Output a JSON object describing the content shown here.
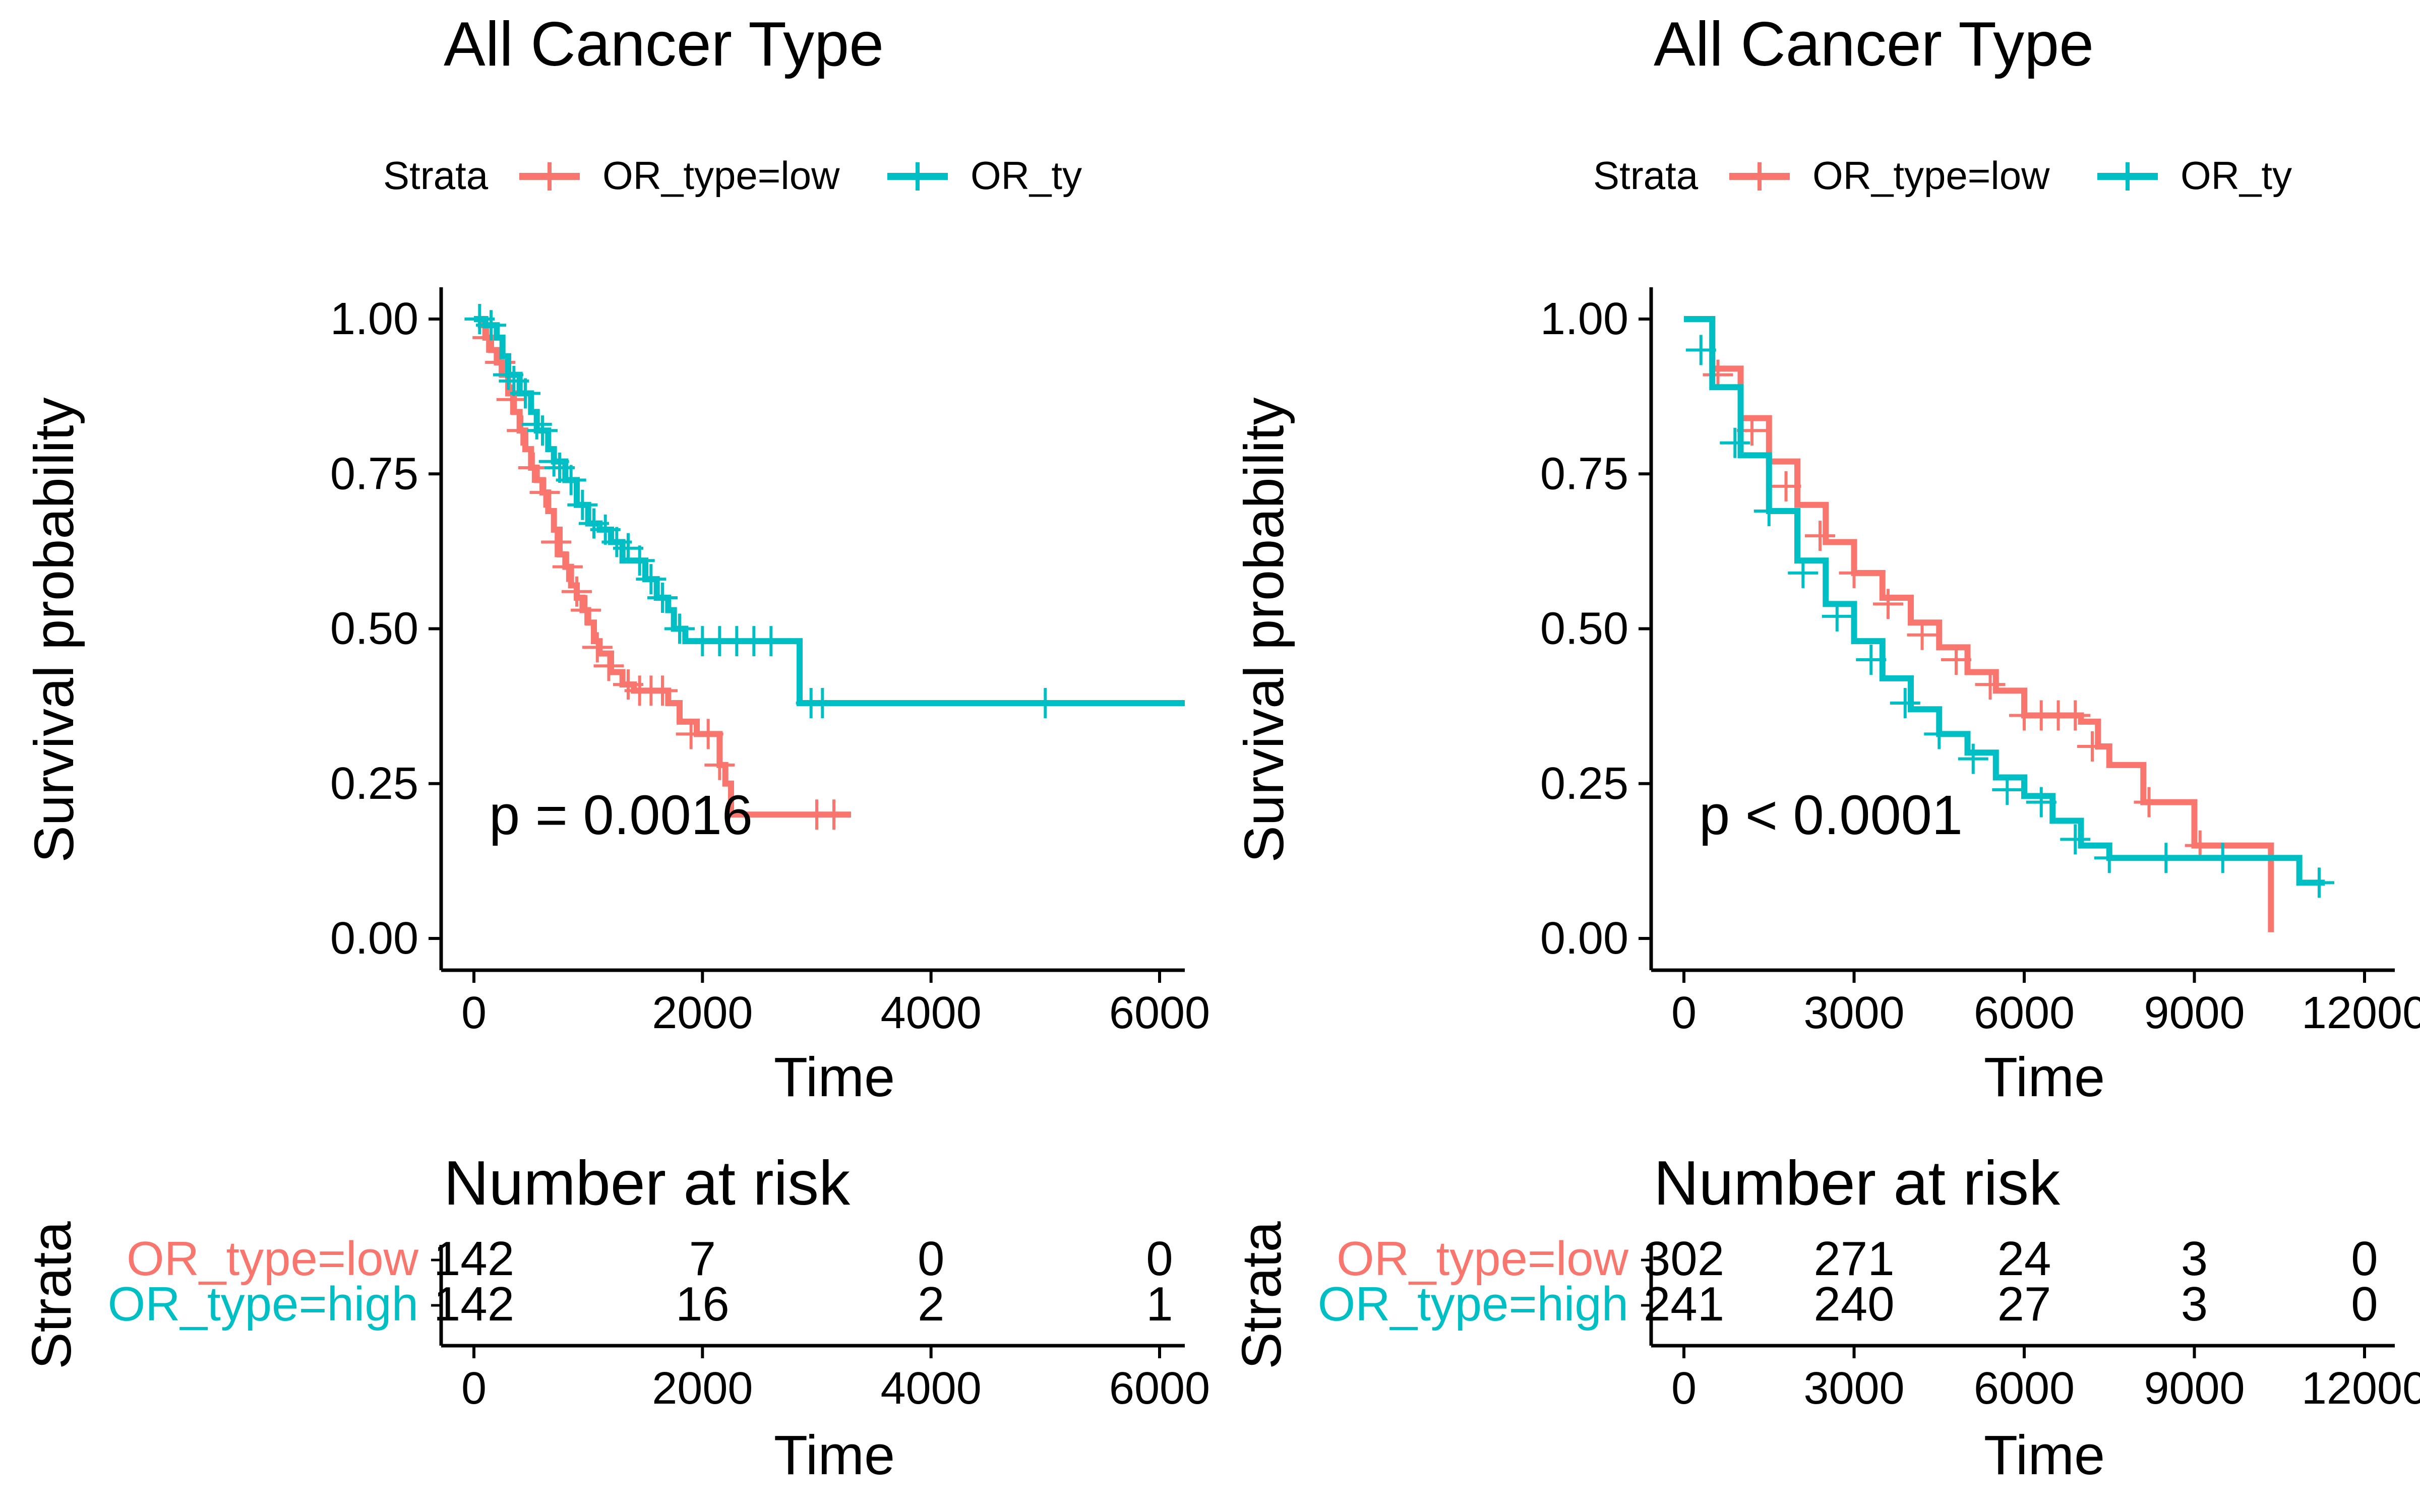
{
  "colors": {
    "low": "#F8766D",
    "high": "#00BFC4",
    "axis": "#000000"
  },
  "chart_data": [
    {
      "type": "line",
      "subtype": "kaplan-meier",
      "title": "All Cancer Type",
      "legend": {
        "title": "Strata",
        "placement": "top",
        "labels": [
          "OR_type=low",
          "OR_type=hig"
        ]
      },
      "xlabel": "Time",
      "ylabel": "Survival probability",
      "xlim": [
        0,
        6300
      ],
      "ylim": [
        0,
        1
      ],
      "xticks": [
        "0",
        "2000",
        "4000",
        "6000"
      ],
      "yticks": [
        "0.00",
        "0.25",
        "0.50",
        "0.75",
        "1.00"
      ],
      "pvalue": "p = 0.0016",
      "series": [
        {
          "name": "OR_type=low",
          "color": "#F8766D",
          "steps": [
            [
              0,
              1
            ],
            [
              60,
              0.99
            ],
            [
              100,
              0.97
            ],
            [
              150,
              0.95
            ],
            [
              200,
              0.93
            ],
            [
              250,
              0.91
            ],
            [
              300,
              0.88
            ],
            [
              350,
              0.85
            ],
            [
              400,
              0.82
            ],
            [
              450,
              0.79
            ],
            [
              500,
              0.76
            ],
            [
              550,
              0.74
            ],
            [
              600,
              0.72
            ],
            [
              650,
              0.69
            ],
            [
              700,
              0.66
            ],
            [
              750,
              0.62
            ],
            [
              800,
              0.6
            ],
            [
              850,
              0.57
            ],
            [
              900,
              0.55
            ],
            [
              950,
              0.53
            ],
            [
              1000,
              0.51
            ],
            [
              1050,
              0.48
            ],
            [
              1100,
              0.46
            ],
            [
              1200,
              0.43
            ],
            [
              1300,
              0.41
            ],
            [
              1400,
              0.4
            ],
            [
              1700,
              0.38
            ],
            [
              1800,
              0.35
            ],
            [
              1950,
              0.33
            ],
            [
              2150,
              0.28
            ],
            [
              2200,
              0.25
            ],
            [
              2250,
              0.2
            ],
            [
              3300,
              0.2
            ]
          ],
          "censor": [
            [
              120,
              0.97
            ],
            [
              230,
              0.93
            ],
            [
              330,
              0.87
            ],
            [
              420,
              0.82
            ],
            [
              520,
              0.76
            ],
            [
              620,
              0.72
            ],
            [
              720,
              0.64
            ],
            [
              820,
              0.6
            ],
            [
              900,
              0.56
            ],
            [
              980,
              0.53
            ],
            [
              1080,
              0.47
            ],
            [
              1180,
              0.44
            ],
            [
              1350,
              0.41
            ],
            [
              1450,
              0.4
            ],
            [
              1550,
              0.4
            ],
            [
              1650,
              0.4
            ],
            [
              1900,
              0.33
            ],
            [
              2050,
              0.33
            ],
            [
              2150,
              0.28
            ],
            [
              3000,
              0.2
            ],
            [
              3150,
              0.2
            ]
          ]
        },
        {
          "name": "OR_type=high",
          "color": "#00BFC4",
          "steps": [
            [
              0,
              1
            ],
            [
              100,
              0.99
            ],
            [
              200,
              0.97
            ],
            [
              250,
              0.94
            ],
            [
              300,
              0.91
            ],
            [
              400,
              0.88
            ],
            [
              500,
              0.85
            ],
            [
              550,
              0.82
            ],
            [
              650,
              0.79
            ],
            [
              700,
              0.77
            ],
            [
              800,
              0.74
            ],
            [
              900,
              0.7
            ],
            [
              1000,
              0.67
            ],
            [
              1100,
              0.66
            ],
            [
              1200,
              0.64
            ],
            [
              1300,
              0.61
            ],
            [
              1500,
              0.58
            ],
            [
              1600,
              0.55
            ],
            [
              1700,
              0.53
            ],
            [
              1750,
              0.5
            ],
            [
              1850,
              0.48
            ],
            [
              2800,
              0.48
            ],
            [
              2850,
              0.38
            ],
            [
              6300,
              0.38
            ]
          ],
          "censor": [
            [
              50,
              1
            ],
            [
              150,
              0.99
            ],
            [
              300,
              0.91
            ],
            [
              350,
              0.9
            ],
            [
              450,
              0.88
            ],
            [
              550,
              0.83
            ],
            [
              600,
              0.82
            ],
            [
              700,
              0.77
            ],
            [
              750,
              0.76
            ],
            [
              850,
              0.74
            ],
            [
              950,
              0.7
            ],
            [
              1050,
              0.67
            ],
            [
              1150,
              0.66
            ],
            [
              1250,
              0.64
            ],
            [
              1350,
              0.63
            ],
            [
              1450,
              0.61
            ],
            [
              1550,
              0.58
            ],
            [
              1650,
              0.55
            ],
            [
              1800,
              0.5
            ],
            [
              2000,
              0.48
            ],
            [
              2150,
              0.48
            ],
            [
              2300,
              0.48
            ],
            [
              2450,
              0.48
            ],
            [
              2600,
              0.48
            ],
            [
              2950,
              0.38
            ],
            [
              3050,
              0.38
            ],
            [
              5000,
              0.38
            ]
          ]
        }
      ],
      "risk_table": {
        "title": "Number at risk",
        "ylabel": "Strata",
        "xlabel": "Time",
        "xticks": [
          "0",
          "2000",
          "4000",
          "6000"
        ],
        "times": [
          0,
          2000,
          4000,
          6000
        ],
        "rows": [
          {
            "name": "OR_type=low",
            "counts": [
              "142",
              "7",
              "0",
              "0"
            ]
          },
          {
            "name": "OR_type=high",
            "counts": [
              "142",
              "16",
              "2",
              "1"
            ]
          }
        ]
      }
    },
    {
      "type": "line",
      "subtype": "kaplan-meier",
      "title": "All Cancer Type",
      "legend": {
        "title": "Strata",
        "placement": "top",
        "labels": [
          "OR_type=low",
          "OR_type=hig"
        ]
      },
      "xlabel": "Time",
      "ylabel": "Survival probability",
      "xlim": [
        0,
        12000
      ],
      "ylim": [
        0,
        1
      ],
      "xticks": [
        "0",
        "3000",
        "6000",
        "9000",
        "12000"
      ],
      "yticks": [
        "0.00",
        "0.25",
        "0.50",
        "0.75",
        "1.00"
      ],
      "pvalue": "p < 0.0001",
      "series": [
        {
          "name": "OR_type=low",
          "color": "#F8766D",
          "steps": [
            [
              0,
              1
            ],
            [
              500,
              0.92
            ],
            [
              1000,
              0.84
            ],
            [
              1500,
              0.77
            ],
            [
              2000,
              0.7
            ],
            [
              2500,
              0.64
            ],
            [
              3000,
              0.59
            ],
            [
              3500,
              0.55
            ],
            [
              4000,
              0.51
            ],
            [
              4500,
              0.47
            ],
            [
              5000,
              0.43
            ],
            [
              5500,
              0.4
            ],
            [
              6000,
              0.36
            ],
            [
              7000,
              0.35
            ],
            [
              7300,
              0.31
            ],
            [
              7500,
              0.28
            ],
            [
              8100,
              0.22
            ],
            [
              9000,
              0.15
            ],
            [
              10300,
              0.15
            ],
            [
              10350,
              0.01
            ]
          ],
          "censor": [
            [
              600,
              0.91
            ],
            [
              1200,
              0.82
            ],
            [
              1800,
              0.73
            ],
            [
              2400,
              0.65
            ],
            [
              3000,
              0.59
            ],
            [
              3600,
              0.54
            ],
            [
              4200,
              0.49
            ],
            [
              4800,
              0.45
            ],
            [
              5400,
              0.41
            ],
            [
              6000,
              0.36
            ],
            [
              6300,
              0.36
            ],
            [
              6600,
              0.36
            ],
            [
              6900,
              0.36
            ],
            [
              7200,
              0.31
            ],
            [
              8200,
              0.22
            ],
            [
              9100,
              0.15
            ]
          ]
        },
        {
          "name": "OR_type=high",
          "color": "#00BFC4",
          "steps": [
            [
              0,
              1
            ],
            [
              500,
              0.89
            ],
            [
              1000,
              0.78
            ],
            [
              1500,
              0.69
            ],
            [
              2000,
              0.61
            ],
            [
              2500,
              0.54
            ],
            [
              3000,
              0.48
            ],
            [
              3500,
              0.42
            ],
            [
              4000,
              0.37
            ],
            [
              4500,
              0.33
            ],
            [
              5000,
              0.3
            ],
            [
              5500,
              0.26
            ],
            [
              6000,
              0.23
            ],
            [
              6500,
              0.19
            ],
            [
              7000,
              0.15
            ],
            [
              7500,
              0.13
            ],
            [
              10800,
              0.13
            ],
            [
              10850,
              0.09
            ],
            [
              11300,
              0.09
            ]
          ],
          "censor": [
            [
              300,
              0.95
            ],
            [
              900,
              0.8
            ],
            [
              1500,
              0.69
            ],
            [
              2100,
              0.59
            ],
            [
              2700,
              0.52
            ],
            [
              3300,
              0.45
            ],
            [
              3900,
              0.38
            ],
            [
              4500,
              0.33
            ],
            [
              5100,
              0.29
            ],
            [
              5700,
              0.24
            ],
            [
              6300,
              0.22
            ],
            [
              6900,
              0.16
            ],
            [
              7500,
              0.13
            ],
            [
              8500,
              0.13
            ],
            [
              9500,
              0.13
            ],
            [
              11200,
              0.09
            ]
          ]
        }
      ],
      "risk_table": {
        "title": "Number at risk",
        "ylabel": "Strata",
        "xlabel": "Time",
        "xticks": [
          "0",
          "3000",
          "6000",
          "9000",
          "12000"
        ],
        "times": [
          0,
          3000,
          6000,
          9000,
          12000
        ],
        "rows": [
          {
            "name": "OR_type=low",
            "counts": [
              "302",
              "271",
              "24",
              "3",
              "0"
            ]
          },
          {
            "name": "OR_type=high",
            "counts": [
              "241",
              "240",
              "27",
              "3",
              "0"
            ]
          }
        ]
      }
    }
  ]
}
